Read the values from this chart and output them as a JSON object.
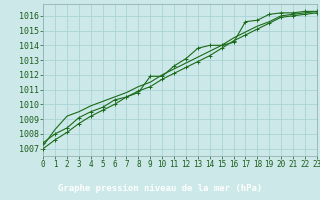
{
  "title": "Graphe pression niveau de la mer (hPa)",
  "bg_color": "#cce8e8",
  "footer_color": "#2d6b2d",
  "grid_color": "#aad4d4",
  "line_color": "#1a6b1a",
  "marker_color": "#1a6b1a",
  "title_text_color": "#ffffff",
  "tick_text_color": "#1a5c1a",
  "xlim": [
    0,
    23
  ],
  "ylim": [
    1006.5,
    1016.8
  ],
  "xticks": [
    0,
    1,
    2,
    3,
    4,
    5,
    6,
    7,
    8,
    9,
    10,
    11,
    12,
    13,
    14,
    15,
    16,
    17,
    18,
    19,
    20,
    21,
    22,
    23
  ],
  "yticks": [
    1007,
    1008,
    1009,
    1010,
    1011,
    1012,
    1013,
    1014,
    1015,
    1016
  ],
  "series1": [
    1007.4,
    1008.0,
    1008.4,
    1009.1,
    1009.5,
    1009.8,
    1010.3,
    1010.5,
    1010.8,
    1011.9,
    1011.9,
    1012.6,
    1013.1,
    1013.8,
    1014.0,
    1014.0,
    1014.2,
    1015.6,
    1015.7,
    1016.1,
    1016.2,
    1016.2,
    1016.3,
    1016.3
  ],
  "series2": [
    1007.2,
    1008.3,
    1009.2,
    1009.5,
    1009.9,
    1010.2,
    1010.5,
    1010.8,
    1011.2,
    1011.5,
    1012.0,
    1012.4,
    1012.8,
    1013.2,
    1013.6,
    1014.0,
    1014.5,
    1014.9,
    1015.3,
    1015.6,
    1016.0,
    1016.1,
    1016.2,
    1016.3
  ],
  "series3": [
    1007.0,
    1007.6,
    1008.1,
    1008.7,
    1009.2,
    1009.6,
    1010.0,
    1010.5,
    1010.9,
    1011.2,
    1011.7,
    1012.1,
    1012.5,
    1012.9,
    1013.3,
    1013.8,
    1014.3,
    1014.7,
    1015.1,
    1015.5,
    1015.9,
    1016.0,
    1016.1,
    1016.2
  ],
  "ytick_fontsize": 6,
  "xtick_fontsize": 5.5,
  "title_fontsize": 6.5
}
